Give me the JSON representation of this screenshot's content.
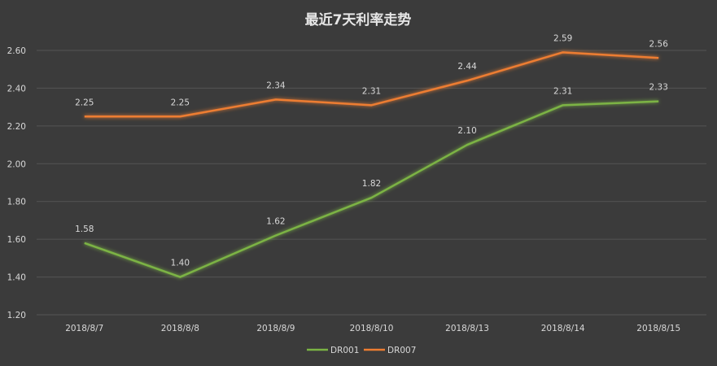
{
  "chart_data": {
    "type": "line",
    "title": "最近7天利率走势",
    "categories": [
      "2018/8/7",
      "2018/8/8",
      "2018/8/9",
      "2018/8/10",
      "2018/8/13",
      "2018/8/14",
      "2018/8/15"
    ],
    "series": [
      {
        "name": "DR001",
        "color": "#7bb344",
        "values": [
          1.58,
          1.4,
          1.62,
          1.82,
          2.1,
          2.31,
          2.33
        ],
        "labels": [
          "1.58",
          "1.40",
          "1.62",
          "1.82",
          "2.10",
          "2.31",
          "2.33"
        ]
      },
      {
        "name": "DR007",
        "color": "#ed7d31",
        "values": [
          2.25,
          2.25,
          2.34,
          2.31,
          2.44,
          2.59,
          2.56
        ],
        "labels": [
          "2.25",
          "2.25",
          "2.34",
          "2.31",
          "2.44",
          "2.59",
          "2.56"
        ]
      }
    ],
    "ylim": [
      1.2,
      2.6
    ],
    "yticks": [
      "1.20",
      "1.40",
      "1.60",
      "1.80",
      "2.00",
      "2.20",
      "2.40",
      "2.60"
    ],
    "ytick_values": [
      1.2,
      1.4,
      1.6,
      1.8,
      2.0,
      2.2,
      2.4,
      2.6
    ],
    "grid": true,
    "legend_position": "bottom",
    "background_color": "#3b3b3b",
    "gridline_color": "#555555"
  }
}
